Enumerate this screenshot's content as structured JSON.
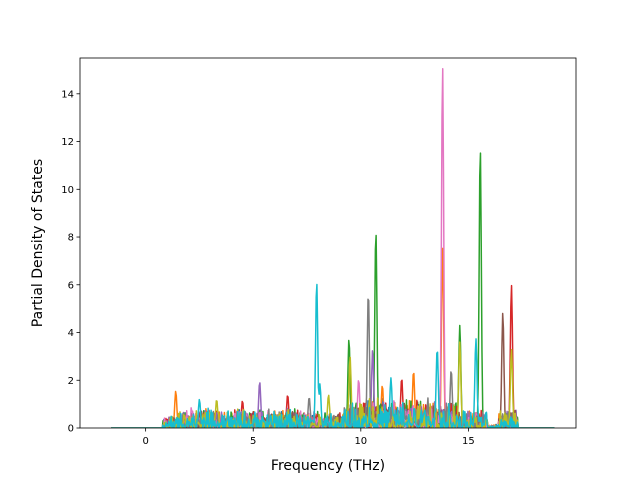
{
  "chart_data": {
    "type": "line",
    "title": "",
    "xlabel": "Frequency (THz)",
    "ylabel": "Partial Density of States",
    "xlim": [
      -3.05,
      20.0
    ],
    "ylim": [
      0,
      15.5
    ],
    "xticks": [
      0,
      5,
      10,
      15
    ],
    "yticks": [
      0,
      2,
      4,
      6,
      8,
      10,
      12,
      14
    ],
    "grid": false,
    "legend": "none",
    "series_count": 10,
    "colors": [
      "#1f77b4",
      "#ff7f0e",
      "#2ca02c",
      "#d62728",
      "#9467bd",
      "#8c564b",
      "#e377c2",
      "#7f7f7f",
      "#bcbd22",
      "#17becf"
    ],
    "data_range_x": [
      -1.6,
      19.0
    ],
    "notable_peaks": [
      {
        "x": 13.8,
        "y": 15.2,
        "color": "#e377c2"
      },
      {
        "x": 15.55,
        "y": 11.8,
        "color": "#2ca02c"
      },
      {
        "x": 10.7,
        "y": 8.3,
        "color": "#2ca02c"
      },
      {
        "x": 13.8,
        "y": 7.6,
        "color": "#ff7f0e"
      },
      {
        "x": 7.95,
        "y": 6.15,
        "color": "#17becf"
      },
      {
        "x": 17.0,
        "y": 6.0,
        "color": "#d62728"
      },
      {
        "x": 10.35,
        "y": 5.7,
        "color": "#7f7f7f"
      },
      {
        "x": 16.6,
        "y": 4.85,
        "color": "#8c564b"
      },
      {
        "x": 14.6,
        "y": 4.3,
        "color": "#2ca02c"
      },
      {
        "x": 9.45,
        "y": 3.75,
        "color": "#2ca02c"
      },
      {
        "x": 15.35,
        "y": 3.75,
        "color": "#17becf"
      },
      {
        "x": 14.6,
        "y": 3.6,
        "color": "#bcbd22"
      },
      {
        "x": 13.55,
        "y": 3.35,
        "color": "#17becf"
      },
      {
        "x": 10.55,
        "y": 3.3,
        "color": "#9467bd"
      },
      {
        "x": 17.0,
        "y": 3.3,
        "color": "#bcbd22"
      },
      {
        "x": 9.5,
        "y": 3.0,
        "color": "#bcbd22"
      },
      {
        "x": 14.2,
        "y": 2.45,
        "color": "#7f7f7f"
      },
      {
        "x": 12.45,
        "y": 2.4,
        "color": "#ff7f0e"
      },
      {
        "x": 11.4,
        "y": 2.1,
        "color": "#17becf"
      },
      {
        "x": 11.9,
        "y": 2.1,
        "color": "#d62728"
      },
      {
        "x": 9.9,
        "y": 2.05,
        "color": "#e377c2"
      },
      {
        "x": 5.3,
        "y": 1.95,
        "color": "#9467bd"
      },
      {
        "x": 11.0,
        "y": 1.8,
        "color": "#ff7f0e"
      },
      {
        "x": 8.1,
        "y": 1.85,
        "color": "#17becf"
      },
      {
        "x": 1.4,
        "y": 1.55,
        "color": "#ff7f0e"
      },
      {
        "x": 8.5,
        "y": 1.4,
        "color": "#bcbd22"
      },
      {
        "x": 6.6,
        "y": 1.4,
        "color": "#d62728"
      },
      {
        "x": 7.6,
        "y": 1.3,
        "color": "#7f7f7f"
      },
      {
        "x": 2.5,
        "y": 1.2,
        "color": "#17becf"
      },
      {
        "x": 3.3,
        "y": 1.2,
        "color": "#bcbd22"
      },
      {
        "x": 4.5,
        "y": 1.15,
        "color": "#d62728"
      }
    ]
  }
}
